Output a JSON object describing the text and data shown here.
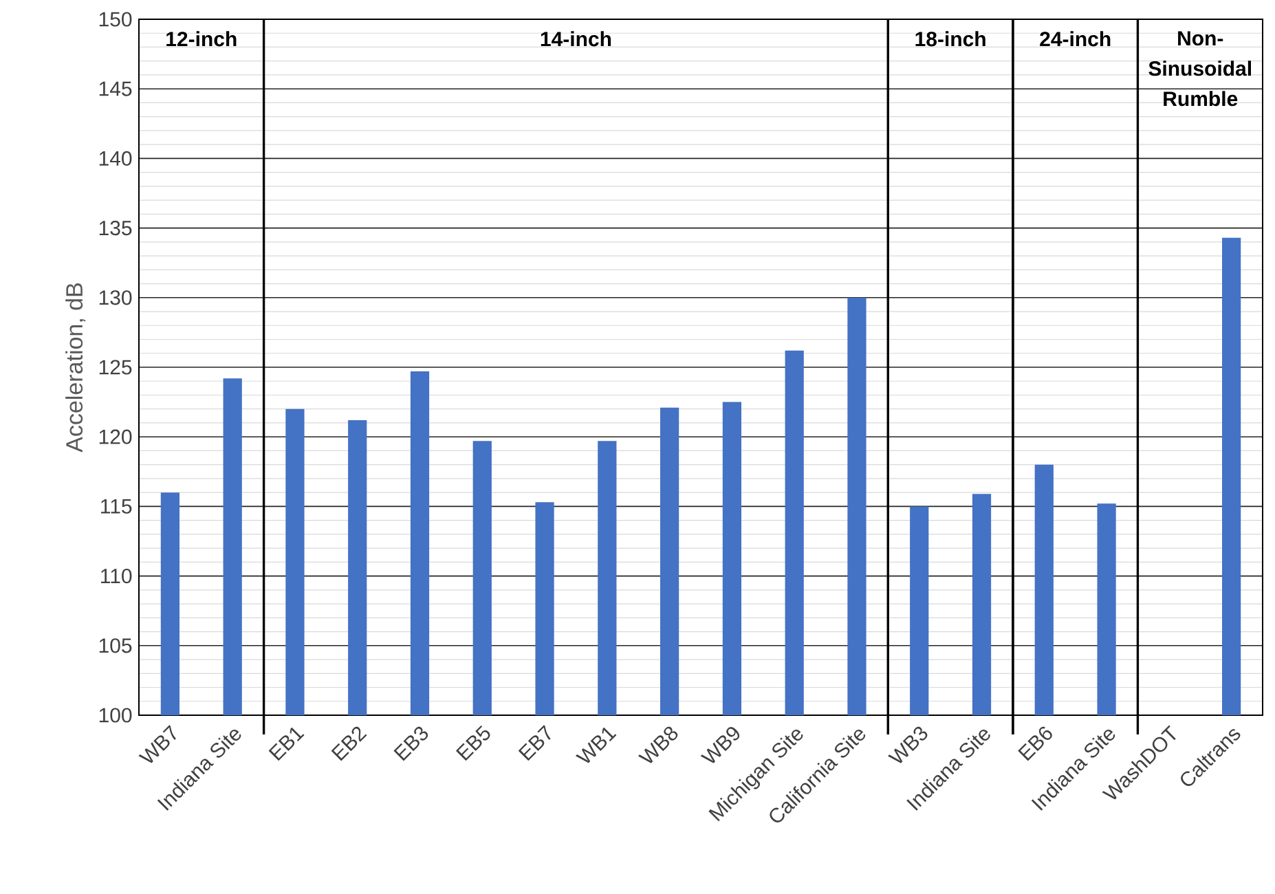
{
  "chart_data": {
    "type": "bar",
    "ylabel": "Acceleration, dB",
    "categories": [
      "WB7",
      "Indiana Site",
      "EB1",
      "EB2",
      "EB3",
      "EB5",
      "EB7",
      "WB1",
      "WB8",
      "WB9",
      "Michigan Site",
      "California Site",
      "WB3",
      "Indiana Site",
      "EB6",
      "Indiana Site",
      "WashDOT",
      "Caltrans"
    ],
    "values": [
      116.0,
      124.2,
      122.0,
      121.2,
      124.7,
      119.7,
      115.3,
      119.7,
      122.1,
      122.5,
      126.2,
      130.0,
      115.0,
      115.9,
      118.0,
      115.2,
      null,
      134.3
    ],
    "color": "#4472c4",
    "ylim": [
      100,
      150
    ],
    "yticks": [
      100,
      105,
      110,
      115,
      120,
      125,
      130,
      135,
      140,
      145,
      150
    ],
    "grid": "y",
    "annotations": [
      "12-inch",
      "14-inch",
      "18-inch",
      "24-inch",
      "Non-Sinusoidal Rumble"
    ]
  }
}
